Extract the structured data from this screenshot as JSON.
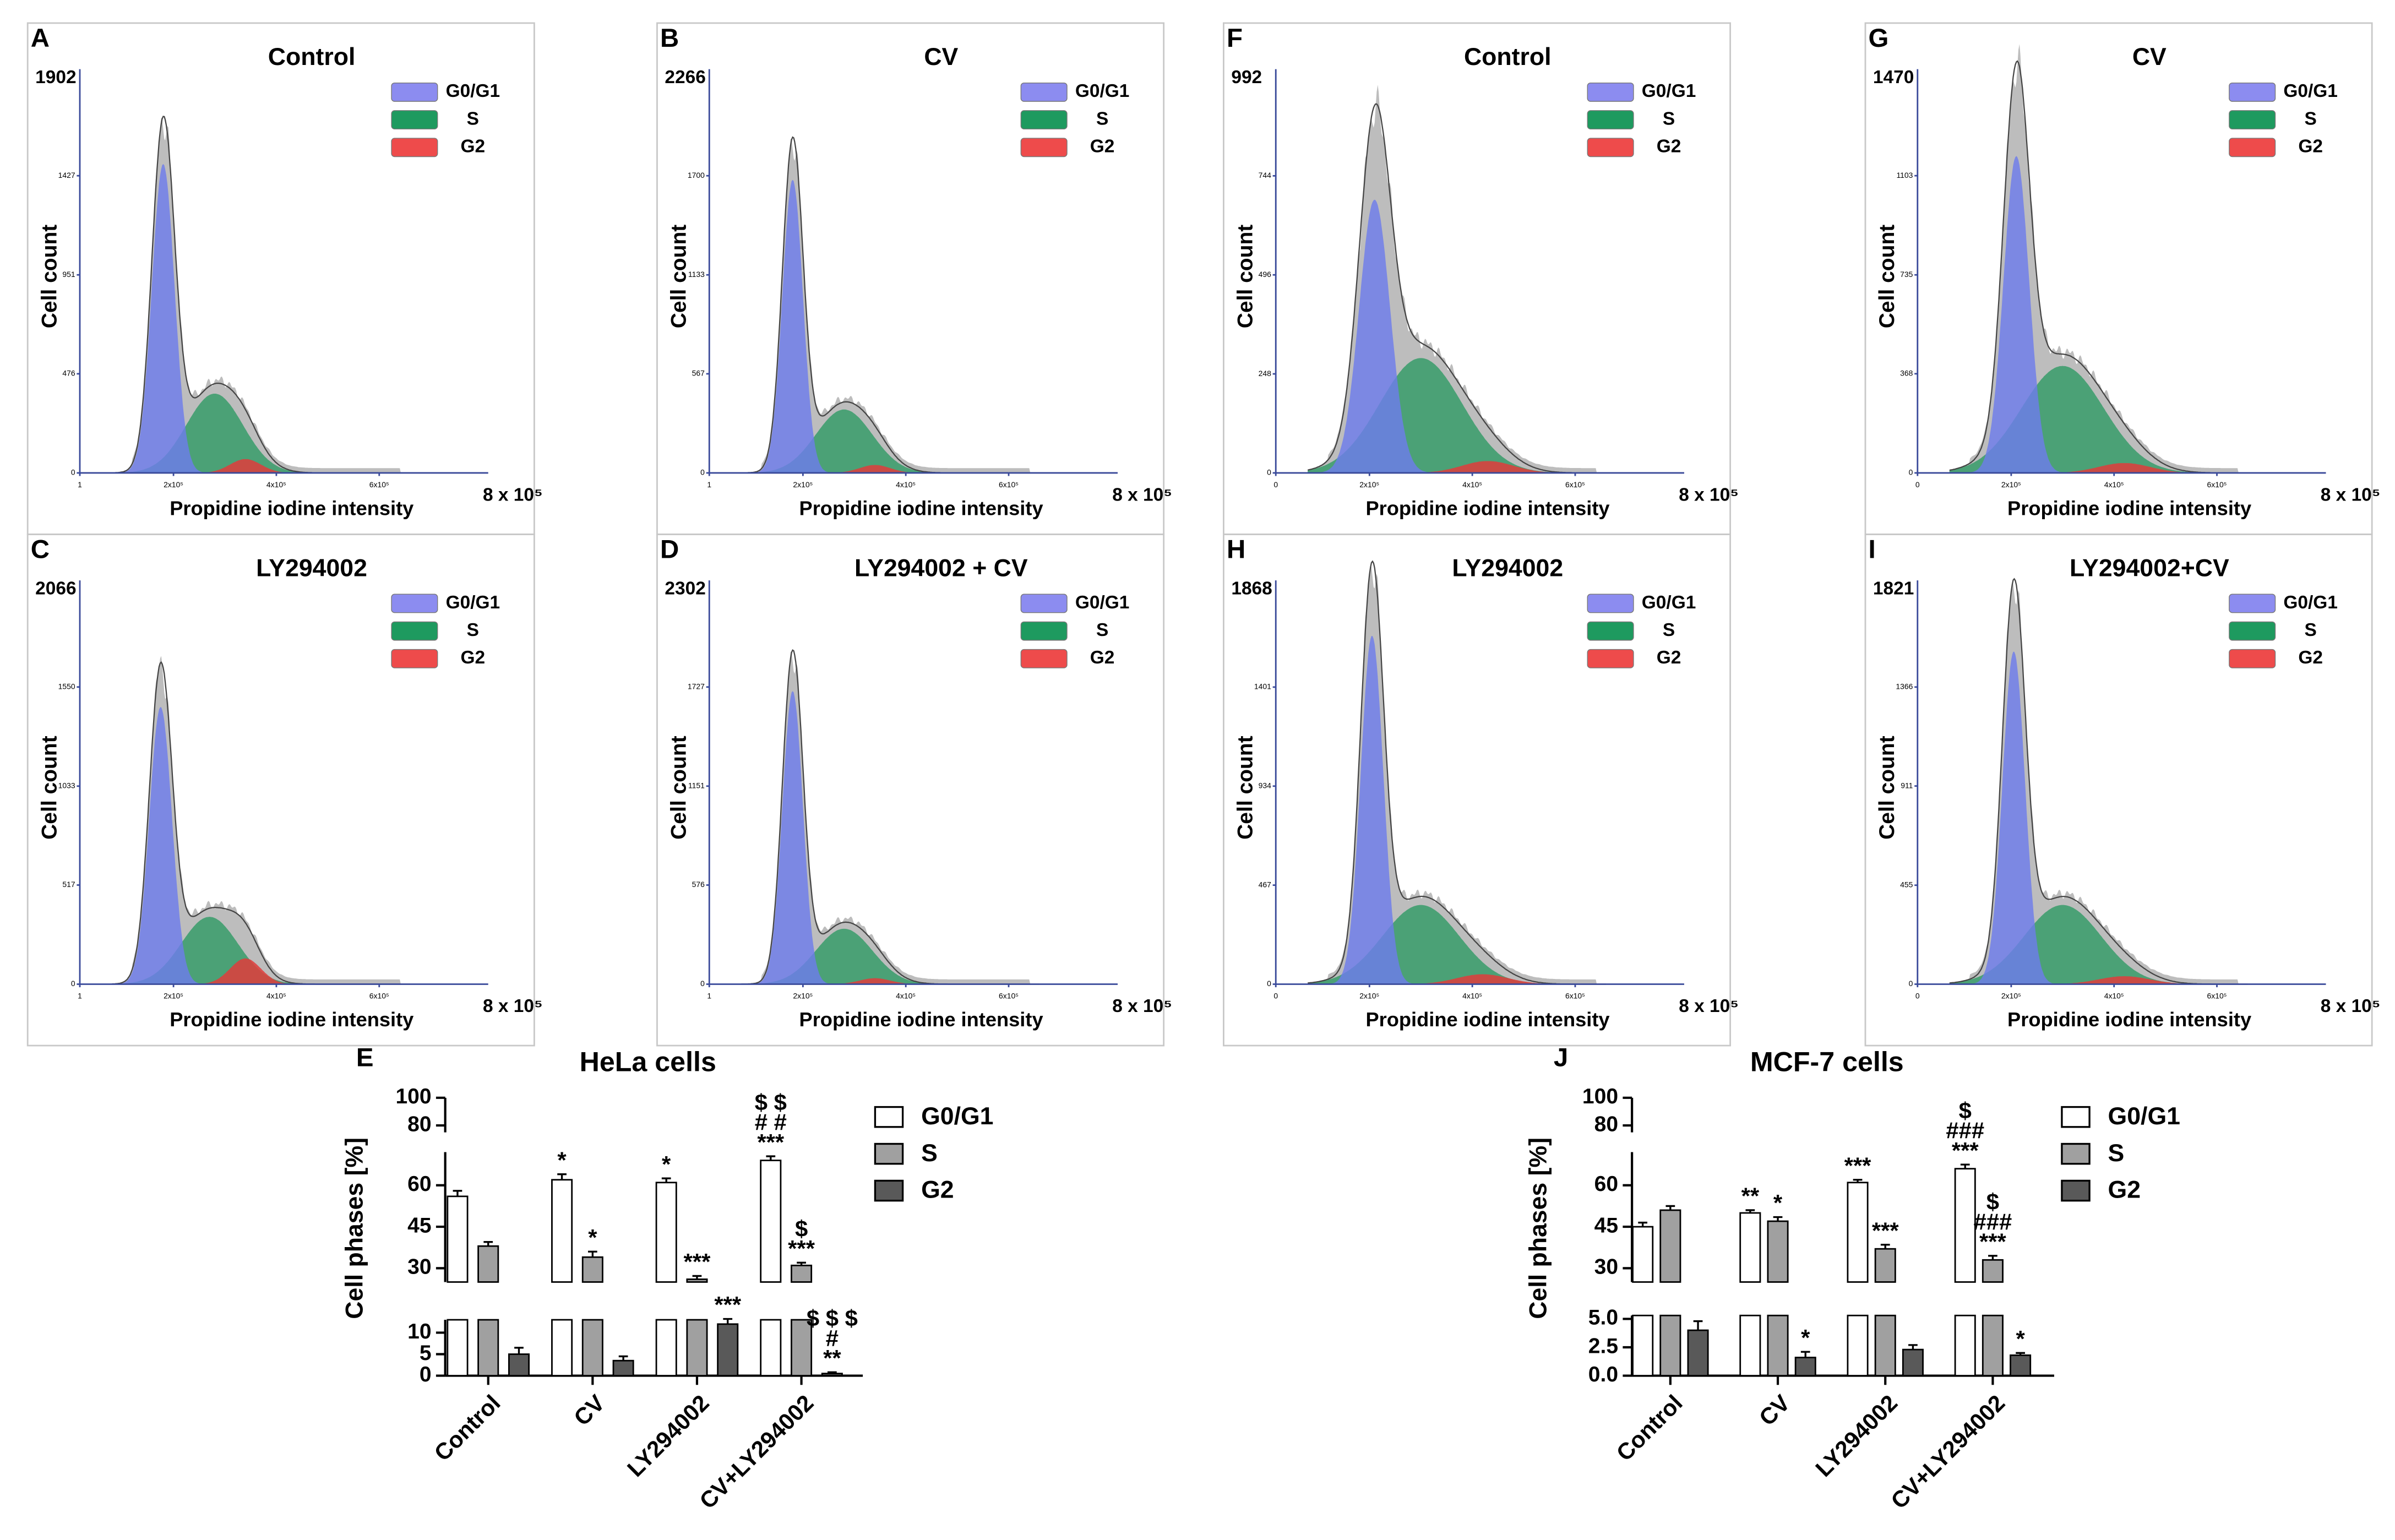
{
  "panels": [
    {
      "letter": "A",
      "title": "Control",
      "ylim": [
        0,
        1902
      ],
      "yticks": [
        0,
        476,
        951,
        1427
      ],
      "xticks": [
        1,
        {
          "value": 200000,
          "label": "2x10⁵"
        },
        {
          "value": 400000,
          "label": "4x10⁵"
        },
        {
          "value": 600000,
          "label": "6x10⁵"
        },
        {
          "value": 800000,
          "label": "8 x 10⁵"
        }
      ],
      "ylabel": "Cell count",
      "xlabel": "Propidine iodine intensity",
      "legend": [
        "G0/G1",
        "S",
        "G2"
      ],
      "colors": [
        "#8c8cf0",
        "#1e9a5f",
        "#ee4b4b"
      ]
    },
    {
      "letter": "B",
      "title": "CV",
      "ylim": [
        0,
        2266
      ],
      "yticks": [
        0,
        567,
        1133,
        1700
      ],
      "xticks": [
        1,
        {
          "value": 200000,
          "label": "2x10⁵"
        },
        {
          "value": 400000,
          "label": "4x10⁵"
        },
        {
          "value": 600000,
          "label": "6x10⁵"
        },
        {
          "value": 800000,
          "label": "8 x 10⁵"
        }
      ],
      "ylabel": "Cell count",
      "xlabel": "Propidine iodine intensity",
      "legend": [
        "G0/G1",
        "S",
        "G2"
      ],
      "colors": [
        "#8c8cf0",
        "#1e9a5f",
        "#ee4b4b"
      ]
    },
    {
      "letter": "F",
      "title": "Control",
      "ylim": [
        0,
        992
      ],
      "yticks": [
        0,
        248,
        496,
        744
      ],
      "xticks": [
        0,
        {
          "value": 200000,
          "label": "2x10⁵"
        },
        {
          "value": 400000,
          "label": "4x10⁵"
        },
        {
          "value": 600000,
          "label": "6x10⁵"
        },
        {
          "value": 800000,
          "label": "8 x 10⁵"
        }
      ],
      "ylabel": "Cell count",
      "xlabel": "Propidine iodine intensity",
      "legend": [
        "G0/G1",
        "S",
        "G2"
      ],
      "colors": [
        "#8c8cf0",
        "#1e9a5f",
        "#ee4b4b"
      ]
    },
    {
      "letter": "G",
      "title": "CV",
      "ylim": [
        0,
        1470
      ],
      "yticks": [
        0,
        368,
        735,
        1103
      ],
      "xticks": [
        0,
        {
          "value": 200000,
          "label": "2x10⁵"
        },
        {
          "value": 400000,
          "label": "4x10⁵"
        },
        {
          "value": 600000,
          "label": "6x10⁵"
        },
        {
          "value": 800000,
          "label": "8 x 10⁵"
        }
      ],
      "ylabel": "Cell count",
      "xlabel": "Propidine iodine intensity",
      "legend": [
        "G0/G1",
        "S",
        "G2"
      ],
      "colors": [
        "#8c8cf0",
        "#1e9a5f",
        "#ee4b4b"
      ]
    },
    {
      "letter": "C",
      "title": "LY294002",
      "ylim": [
        0,
        2066
      ],
      "yticks": [
        0,
        517,
        1033,
        1550
      ],
      "xticks": [
        1,
        {
          "value": 200000,
          "label": "2x10⁵"
        },
        {
          "value": 400000,
          "label": "4x10⁵"
        },
        {
          "value": 600000,
          "label": "6x10⁵"
        },
        {
          "value": 800000,
          "label": "8 x 10⁵"
        }
      ],
      "ylabel": "Cell count",
      "xlabel": "Propidine iodine intensity",
      "legend": [
        "G0/G1",
        "S",
        "G2"
      ],
      "colors": [
        "#8c8cf0",
        "#1e9a5f",
        "#ee4b4b"
      ]
    },
    {
      "letter": "D",
      "title": "LY294002 + CV",
      "ylim": [
        0,
        2302
      ],
      "yticks": [
        0,
        576,
        1151,
        1727
      ],
      "xticks": [
        1,
        {
          "value": 200000,
          "label": "2x10⁵"
        },
        {
          "value": 400000,
          "label": "4x10⁵"
        },
        {
          "value": 600000,
          "label": "6x10⁵"
        },
        {
          "value": 800000,
          "label": "8 x 10⁵"
        }
      ],
      "ylabel": "Cell count",
      "xlabel": "Propidine iodine intensity",
      "legend": [
        "G0/G1",
        "S",
        "G2"
      ],
      "colors": [
        "#8c8cf0",
        "#1e9a5f",
        "#ee4b4b"
      ]
    },
    {
      "letter": "H",
      "title": "LY294002",
      "ylim": [
        0,
        1868
      ],
      "yticks": [
        0,
        467,
        934,
        1401
      ],
      "xticks": [
        0,
        {
          "value": 200000,
          "label": "2x10⁵"
        },
        {
          "value": 400000,
          "label": "4x10⁵"
        },
        {
          "value": 600000,
          "label": "6x10⁵"
        },
        {
          "value": 800000,
          "label": "8 x 10⁵"
        }
      ],
      "ylabel": "Cell count",
      "xlabel": "Propidine iodine intensity",
      "legend": [
        "G0/G1",
        "S",
        "G2"
      ],
      "colors": [
        "#8c8cf0",
        "#1e9a5f",
        "#ee4b4b"
      ]
    },
    {
      "letter": "I",
      "title": "LY294002+CV",
      "ylim": [
        0,
        1821
      ],
      "yticks": [
        0,
        455,
        911,
        1366
      ],
      "xticks": [
        0,
        {
          "value": 200000,
          "label": "2x10⁵"
        },
        {
          "value": 400000,
          "label": "4x10⁵"
        },
        {
          "value": 600000,
          "label": "6x10⁵"
        },
        {
          "value": 800000,
          "label": "8 x 10⁵"
        }
      ],
      "ylabel": "Cell count",
      "xlabel": "Propidine iodine intensity",
      "legend": [
        "G0/G1",
        "S",
        "G2"
      ],
      "colors": [
        "#8c8cf0",
        "#1e9a5f",
        "#ee4b4b"
      ]
    }
  ],
  "chart_data": [
    {
      "type": "bar",
      "panel": "E",
      "title": "HeLa cells",
      "ylabel": "Cell phases [%]",
      "categories": [
        "Control",
        "CV",
        "LY294002",
        "CV+LY294002"
      ],
      "segments": [
        {
          "ylim": [
            0,
            13
          ],
          "yticks": [
            0,
            5,
            10
          ]
        },
        {
          "ylim": [
            25,
            72
          ],
          "yticks": [
            30,
            45,
            60
          ]
        },
        {
          "ylim": [
            75,
            100
          ],
          "yticks": [
            80,
            100
          ]
        }
      ],
      "series": [
        {
          "name": "G0/G1",
          "color": "#ffffff",
          "values": [
            56,
            62,
            61,
            69
          ],
          "errors": [
            2,
            2,
            1.5,
            1.5
          ],
          "annotations": [
            [],
            [
              "*"
            ],
            [
              "*"
            ],
            [
              "$ $",
              "# #",
              "***"
            ]
          ]
        },
        {
          "name": "S",
          "color": "#a0a0a0",
          "values": [
            38,
            34,
            26,
            31
          ],
          "errors": [
            1.5,
            2,
            1.2,
            1
          ],
          "annotations": [
            [],
            [
              "*"
            ],
            [
              "***"
            ],
            [
              "$",
              "***"
            ]
          ]
        },
        {
          "name": "G2",
          "color": "#595959",
          "values": [
            5,
            3.5,
            12,
            0.5
          ],
          "errors": [
            1.5,
            1,
            1.2,
            0.3
          ],
          "annotations": [
            [],
            [],
            [
              "***"
            ],
            [
              "$ $ $",
              "#",
              "**"
            ]
          ]
        }
      ]
    },
    {
      "type": "bar",
      "panel": "J",
      "title": "MCF-7 cells",
      "ylabel": "Cell phases [%]",
      "categories": [
        "Control",
        "CV",
        "LY294002",
        "CV+LY294002"
      ],
      "segments": [
        {
          "ylim": [
            0,
            5.3
          ],
          "yticks": [
            {
              "value": 0,
              "label": "0.0"
            },
            2.5,
            {
              "value": 5,
              "label": "5.0"
            }
          ]
        },
        {
          "ylim": [
            25,
            72
          ],
          "yticks": [
            30,
            45,
            60
          ]
        },
        {
          "ylim": [
            75,
            100
          ],
          "yticks": [
            80,
            100
          ]
        }
      ],
      "series": [
        {
          "name": "G0/G1",
          "color": "#ffffff",
          "values": [
            45,
            50,
            61,
            66
          ],
          "errors": [
            1.5,
            1,
            1,
            1.5
          ],
          "annotations": [
            [],
            [
              "**"
            ],
            [
              "***"
            ],
            [
              "$",
              "###",
              "***"
            ]
          ]
        },
        {
          "name": "S",
          "color": "#a0a0a0",
          "values": [
            51,
            47,
            37,
            33
          ],
          "errors": [
            1.5,
            1.5,
            1.5,
            1.5
          ],
          "annotations": [
            [],
            [
              "*"
            ],
            [
              "***"
            ],
            [
              "$",
              "###",
              "***"
            ]
          ]
        },
        {
          "name": "G2",
          "color": "#595959",
          "values": [
            4,
            1.6,
            2.3,
            1.8
          ],
          "errors": [
            0.8,
            0.5,
            0.4,
            0.2
          ],
          "annotations": [
            [],
            [
              "*"
            ],
            [],
            [
              "*"
            ]
          ]
        }
      ]
    }
  ]
}
